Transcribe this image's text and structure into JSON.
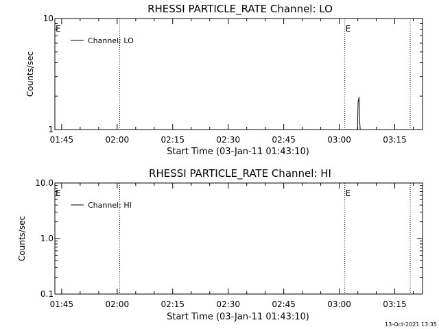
{
  "footer": {
    "timestamp": "13-Oct-2021 13:35"
  },
  "chart_data": [
    {
      "type": "line",
      "title": "RHESSI PARTICLE_RATE Channel: LO",
      "xlabel": "Start Time (03-Jan-11 01:43:10)",
      "ylabel": "Counts/sec",
      "y_scale": "log",
      "ylim": [
        1,
        10
      ],
      "y_ticks": [
        {
          "value": 1,
          "label": "1"
        },
        {
          "value": 10,
          "label": "10"
        }
      ],
      "xlim": [
        "01:43:10",
        "03:22:30"
      ],
      "x_ticks": [
        {
          "value": "01:45",
          "label": "01:45"
        },
        {
          "value": "02:00",
          "label": "02:00"
        },
        {
          "value": "02:15",
          "label": "02:15"
        },
        {
          "value": "02:30",
          "label": "02:30"
        },
        {
          "value": "02:45",
          "label": "02:45"
        },
        {
          "value": "03:00",
          "label": "03:00"
        },
        {
          "value": "03:15",
          "label": "03:15"
        }
      ],
      "vertical_lines": [
        {
          "x": "02:00:40",
          "label": ""
        },
        {
          "x": "03:01:30",
          "label": ""
        },
        {
          "x": "03:19:10",
          "label": ""
        }
      ],
      "markers": [
        {
          "x": "01:43:10",
          "label": "E"
        },
        {
          "x": "03:01:30",
          "label": "E"
        }
      ],
      "legend": {
        "position": "top-left",
        "entries": [
          "Channel: LO"
        ]
      },
      "series": [
        {
          "name": "Channel: LO",
          "points": [
            {
              "x": "03:04:55",
              "y": 1
            },
            {
              "x": "03:05:05",
              "y": 1.75
            },
            {
              "x": "03:05:20",
              "y": 1.95
            },
            {
              "x": "03:05:30",
              "y": 1.2
            },
            {
              "x": "03:05:40",
              "y": 1
            }
          ]
        }
      ]
    },
    {
      "type": "line",
      "title": "RHESSI PARTICLE_RATE Channel: HI",
      "xlabel": "Start Time (03-Jan-11 01:43:10)",
      "ylabel": "Counts/sec",
      "y_scale": "log",
      "ylim": [
        0.1,
        10
      ],
      "y_ticks": [
        {
          "value": 0.1,
          "label": "0.1"
        },
        {
          "value": 1,
          "label": "1.0"
        },
        {
          "value": 10,
          "label": "10.0"
        }
      ],
      "xlim": [
        "01:43:10",
        "03:22:30"
      ],
      "x_ticks": [
        {
          "value": "01:45",
          "label": "01:45"
        },
        {
          "value": "02:00",
          "label": "02:00"
        },
        {
          "value": "02:15",
          "label": "02:15"
        },
        {
          "value": "02:30",
          "label": "02:30"
        },
        {
          "value": "02:45",
          "label": "02:45"
        },
        {
          "value": "03:00",
          "label": "03:00"
        },
        {
          "value": "03:15",
          "label": "03:15"
        }
      ],
      "vertical_lines": [
        {
          "x": "02:00:40",
          "label": ""
        },
        {
          "x": "03:01:30",
          "label": ""
        },
        {
          "x": "03:19:10",
          "label": ""
        }
      ],
      "markers": [
        {
          "x": "01:43:10",
          "label": "E"
        },
        {
          "x": "03:01:30",
          "label": "E"
        }
      ],
      "legend": {
        "position": "top-left",
        "entries": [
          "Channel: HI"
        ]
      },
      "series": [
        {
          "name": "Channel: HI",
          "points": []
        }
      ]
    }
  ]
}
